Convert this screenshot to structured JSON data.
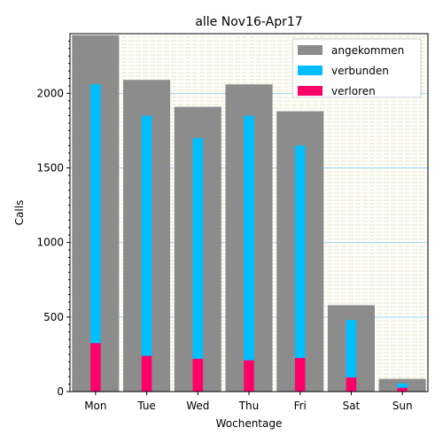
{
  "chart_data": {
    "type": "bar",
    "title": "alle Nov16-Apr17",
    "xlabel": "Wochentage",
    "ylabel": "Calls",
    "categories": [
      "Mon",
      "Tue",
      "Wed",
      "Thu",
      "Fri",
      "Sat",
      "Sun"
    ],
    "ylim": [
      0,
      2400
    ],
    "yticks": [
      0,
      500,
      1000,
      1500,
      2000
    ],
    "series": [
      {
        "name": "angekommen",
        "color": "#8c8c8c",
        "values": [
          2390,
          2090,
          1910,
          2060,
          1880,
          580,
          85
        ]
      },
      {
        "name": "verbunden",
        "color": "#00bfff",
        "values": [
          2060,
          1850,
          1700,
          1850,
          1650,
          480,
          55
        ]
      },
      {
        "name": "verloren",
        "color": "#ff0066",
        "values": [
          325,
          240,
          220,
          210,
          225,
          95,
          25
        ]
      }
    ],
    "legend_position": "top-right",
    "grid": true
  }
}
